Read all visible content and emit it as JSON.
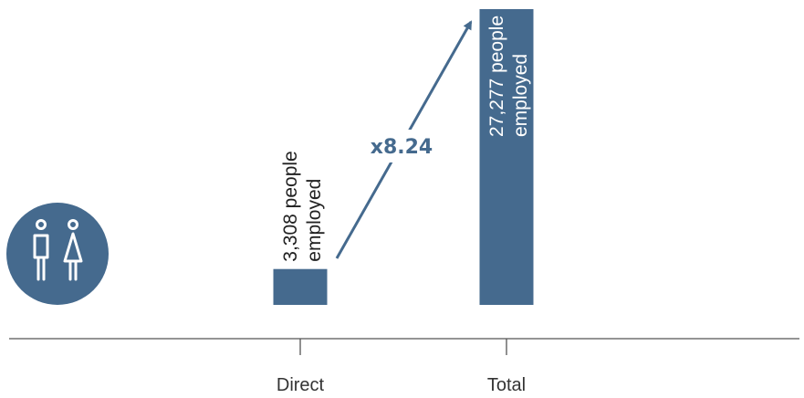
{
  "colors": {
    "bar": "#456a8e",
    "axis": "#555555",
    "icon_bg": "#456a8e",
    "bar_text_dark": "#222222",
    "bar_text_light": "#ffffff",
    "multiplier": "#456a8e"
  },
  "icon": {
    "name": "people-icon"
  },
  "multiplier": {
    "label": "x8.24"
  },
  "chart_data": {
    "type": "bar",
    "categories": [
      "Direct",
      "Total"
    ],
    "values": [
      3308,
      27277
    ],
    "bar_labels": [
      [
        "3,308 people",
        "employed"
      ],
      [
        "27,277 people",
        "employed"
      ]
    ],
    "ylim": [
      0,
      28000
    ],
    "grid": false,
    "xlabel": "",
    "ylabel": ""
  }
}
